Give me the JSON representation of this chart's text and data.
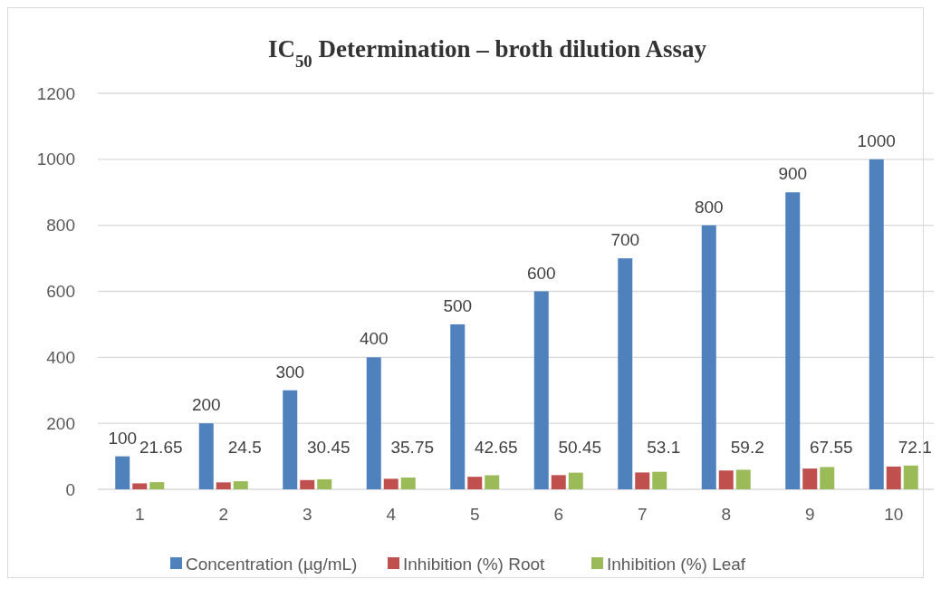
{
  "chart_data": {
    "type": "bar",
    "title": "IC$_{50}$ Determination – broth dilution Assay",
    "categories": [
      "1",
      "2",
      "3",
      "4",
      "5",
      "6",
      "7",
      "8",
      "9",
      "10"
    ],
    "series": [
      {
        "name": "Concentration (µg/mL)",
        "color": "#4f81bd",
        "values": [
          100,
          200,
          300,
          400,
          500,
          600,
          700,
          800,
          900,
          1000
        ],
        "value_labels": [
          "100",
          "200",
          "300",
          "400",
          "500",
          "600",
          "700",
          "800",
          "900",
          "1000"
        ]
      },
      {
        "name": "Inhibition (%) Root",
        "color": "#c0504d",
        "values": [
          18,
          21,
          28,
          32,
          38,
          43,
          51,
          57,
          63,
          69
        ]
      },
      {
        "name": "Inhibition (%) Leaf",
        "color": "#9bbb59",
        "values": [
          21.65,
          24.5,
          30.45,
          35.75,
          42.65,
          50.45,
          53.1,
          59.2,
          67.55,
          72.1
        ],
        "value_labels": [
          "21.65",
          "24.5",
          "30.45",
          "35.75",
          "42.65",
          "50.45",
          "53.1",
          "59.2",
          "67.55",
          "72.1"
        ]
      }
    ],
    "ylim": [
      0,
      1200
    ],
    "yticks": [
      0,
      200,
      400,
      600,
      800,
      1000,
      1200
    ],
    "grid": "y",
    "legend": "bottom"
  }
}
